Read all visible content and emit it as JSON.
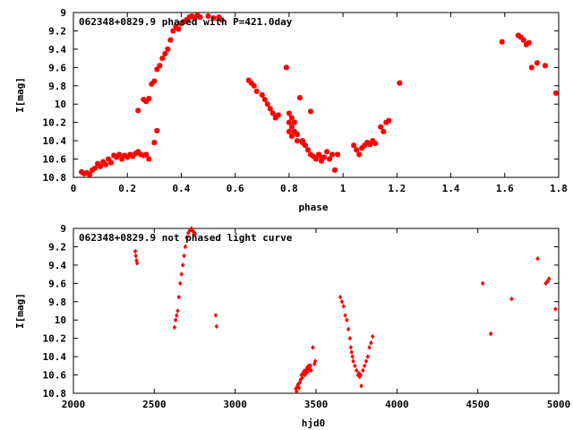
{
  "colors": {
    "points": "#ff0000",
    "axes": "#000000",
    "background": "#ffffff"
  },
  "chart_data": [
    {
      "type": "scatter",
      "title": "062348+0829.9 phased with P=421.0day",
      "xlabel": "phase",
      "ylabel": "I[mag]",
      "xlim": [
        0,
        1.8
      ],
      "ylim": [
        10.8,
        9
      ],
      "y_inverted": true,
      "xticks": [
        "0",
        "0.2",
        "0.4",
        "0.6",
        "0.8",
        "1",
        "1.2",
        "1.4",
        "1.6",
        "1.8"
      ],
      "yticks": [
        "9",
        "9.2",
        "9.4",
        "9.6",
        "9.8",
        "10",
        "10.2",
        "10.4",
        "10.6",
        "10.8"
      ],
      "grid": false,
      "marker": "star",
      "series": [
        {
          "x": [
            0.03,
            0.04,
            0.05,
            0.06,
            0.07,
            0.08,
            0.09,
            0.1,
            0.11,
            0.12,
            0.13,
            0.14,
            0.15,
            0.16,
            0.17,
            0.18,
            0.19,
            0.2,
            0.21,
            0.22,
            0.23,
            0.24,
            0.25,
            0.26,
            0.27,
            0.24,
            0.26,
            0.27,
            0.28,
            0.29,
            0.3,
            0.31,
            0.32,
            0.33,
            0.34,
            0.35,
            0.36,
            0.37,
            0.38,
            0.39,
            0.4,
            0.41,
            0.42,
            0.43,
            0.44,
            0.45,
            0.46,
            0.47,
            0.5,
            0.52,
            0.54,
            0.55,
            0.3,
            0.31,
            0.28,
            0.24,
            0.65,
            0.66,
            0.67,
            0.68,
            0.7,
            0.71,
            0.72,
            0.73,
            0.74,
            0.75,
            0.76,
            0.79,
            0.8,
            0.8,
            0.8,
            0.81,
            0.81,
            0.81,
            0.82,
            0.82,
            0.83,
            0.83,
            0.84,
            0.85,
            0.86,
            0.87,
            0.88,
            0.89,
            0.9,
            0.91,
            0.92,
            0.93,
            0.94,
            0.95,
            0.96,
            0.97,
            0.98,
            0.85,
            0.88,
            0.92,
            1.04,
            1.05,
            1.06,
            1.07,
            1.08,
            1.09,
            1.1,
            1.11,
            1.12,
            1.14,
            1.15,
            1.16,
            1.17,
            1.21,
            1.59,
            1.65,
            1.66,
            1.67,
            1.68,
            1.69,
            1.7,
            1.72,
            1.75,
            1.79
          ],
          "y": [
            10.74,
            10.76,
            10.75,
            10.77,
            10.72,
            10.7,
            10.65,
            10.68,
            10.63,
            10.66,
            10.6,
            10.64,
            10.56,
            10.58,
            10.55,
            10.6,
            10.56,
            10.58,
            10.55,
            10.57,
            10.54,
            10.53,
            10.55,
            10.56,
            10.55,
            10.07,
            9.95,
            9.97,
            9.94,
            9.78,
            9.75,
            9.62,
            9.58,
            9.5,
            9.45,
            9.4,
            9.3,
            9.2,
            9.15,
            9.18,
            9.12,
            9.1,
            9.08,
            9.05,
            9.04,
            9.06,
            9.03,
            9.05,
            9.04,
            9.06,
            9.05,
            9.08,
            10.42,
            10.29,
            10.6,
            10.52,
            9.74,
            9.77,
            9.8,
            9.86,
            9.9,
            9.95,
            10,
            10.05,
            10.1,
            10.15,
            10.12,
            9.6,
            10.1,
            10.2,
            10.3,
            10.15,
            10.25,
            10.35,
            10.2,
            10.3,
            10.33,
            10.4,
            9.93,
            10.42,
            10.45,
            10.5,
            10.55,
            10.57,
            10.6,
            10.55,
            10.62,
            10.58,
            10.52,
            10.6,
            10.55,
            10.72,
            10.55,
            10.4,
            10.08,
            10.58,
            10.45,
            10.5,
            10.55,
            10.48,
            10.45,
            10.42,
            10.44,
            10.4,
            10.43,
            10.25,
            10.3,
            10.2,
            10.18,
            9.77,
            9.32,
            9.25,
            9.27,
            9.3,
            9.35,
            9.33,
            9.6,
            9.55,
            9.58,
            9.88
          ]
        }
      ]
    },
    {
      "type": "scatter",
      "title": "062348+0829.9 not phased light curve",
      "xlabel": "hjd0",
      "ylabel": "I[mag]",
      "xlim": [
        2000,
        5000
      ],
      "ylim": [
        10.8,
        9
      ],
      "y_inverted": true,
      "xticks": [
        "2000",
        "2500",
        "3000",
        "3500",
        "4000",
        "4500",
        "5000"
      ],
      "yticks": [
        "9",
        "9.2",
        "9.4",
        "9.6",
        "9.8",
        "10",
        "10.2",
        "10.4",
        "10.6",
        "10.8"
      ],
      "grid": false,
      "marker": "diamond",
      "series": [
        {
          "x": [
            2382,
            2386,
            2390,
            2394,
            2625,
            2632,
            2638,
            2645,
            2652,
            2660,
            2668,
            2676,
            2684,
            2692,
            2700,
            2710,
            2720,
            2730,
            2738,
            2745,
            2752,
            2880,
            2885,
            3375,
            3380,
            3385,
            3390,
            3395,
            3400,
            3405,
            3410,
            3415,
            3420,
            3425,
            3430,
            3435,
            3440,
            3445,
            3450,
            3455,
            3460,
            3465,
            3470,
            3480,
            3490,
            3495,
            3650,
            3660,
            3670,
            3680,
            3690,
            3700,
            3710,
            3715,
            3720,
            3725,
            3730,
            3740,
            3750,
            3760,
            3765,
            3770,
            3775,
            3780,
            3790,
            3800,
            3810,
            3820,
            3830,
            3840,
            3850,
            4530,
            4580,
            4710,
            4870,
            4920,
            4930,
            4940,
            4980
          ],
          "y": [
            9.25,
            9.3,
            9.35,
            9.38,
            10.08,
            10,
            9.95,
            9.9,
            9.75,
            9.6,
            9.5,
            9.4,
            9.3,
            9.2,
            9.1,
            9.05,
            9.02,
            9,
            9.03,
            9.04,
            9.06,
            9.95,
            10.07,
            10.75,
            10.78,
            10.72,
            10.7,
            10.74,
            10.68,
            10.65,
            10.6,
            10.63,
            10.58,
            10.56,
            10.6,
            10.55,
            10.58,
            10.52,
            10.56,
            10.5,
            10.53,
            10.5,
            10.55,
            10.3,
            10.48,
            10.45,
            9.75,
            9.8,
            9.85,
            9.95,
            10,
            10.1,
            10.2,
            10.3,
            10.35,
            10.4,
            10.45,
            10.5,
            10.55,
            10.6,
            10.58,
            10.62,
            10.6,
            10.72,
            10.55,
            10.5,
            10.45,
            10.4,
            10.3,
            10.25,
            10.18,
            9.6,
            10.15,
            9.77,
            9.33,
            9.6,
            9.58,
            9.55,
            9.88
          ]
        }
      ]
    }
  ]
}
